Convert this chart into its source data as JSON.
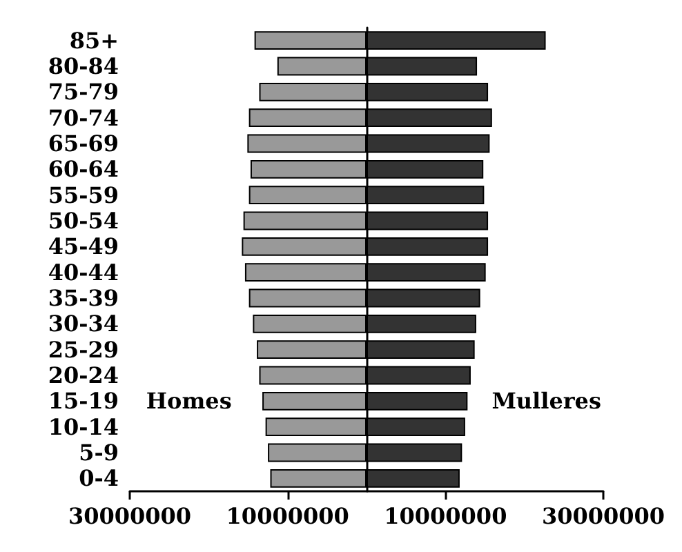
{
  "chart_data": {
    "type": "bar",
    "orientation": "horizontal",
    "stacked": true,
    "legend": false,
    "grid": false,
    "categories": [
      "85+",
      "80-84",
      "75-79",
      "70-74",
      "65-69",
      "60-64",
      "55-59",
      "50-54",
      "45-49",
      "40-44",
      "35-39",
      "30-34",
      "25-29",
      "20-24",
      "15-19",
      "10-14",
      "5-9",
      "0-4"
    ],
    "series": [
      {
        "name": "Homes",
        "color": "#999999",
        "values": [
          -14200000,
          -11300000,
          -13600000,
          -14900000,
          -15100000,
          -14700000,
          -14900000,
          -15600000,
          -15800000,
          -15400000,
          -14900000,
          -14400000,
          -13900000,
          -13600000,
          -13200000,
          -12800000,
          -12500000,
          -12200000
        ]
      },
      {
        "name": "Mulleres",
        "color": "#333333",
        "values": [
          22700000,
          14000000,
          15400000,
          15900000,
          15600000,
          14800000,
          14900000,
          15400000,
          15400000,
          15100000,
          14400000,
          13900000,
          13700000,
          13200000,
          12800000,
          12500000,
          12100000,
          11800000
        ]
      }
    ],
    "xlim": [
      -30000000,
      30000000
    ],
    "xticks": [
      {
        "value": -30000000,
        "label": "30000000"
      },
      {
        "value": -10000000,
        "label": "10000000"
      },
      10000000,
      30000000
    ]
  }
}
